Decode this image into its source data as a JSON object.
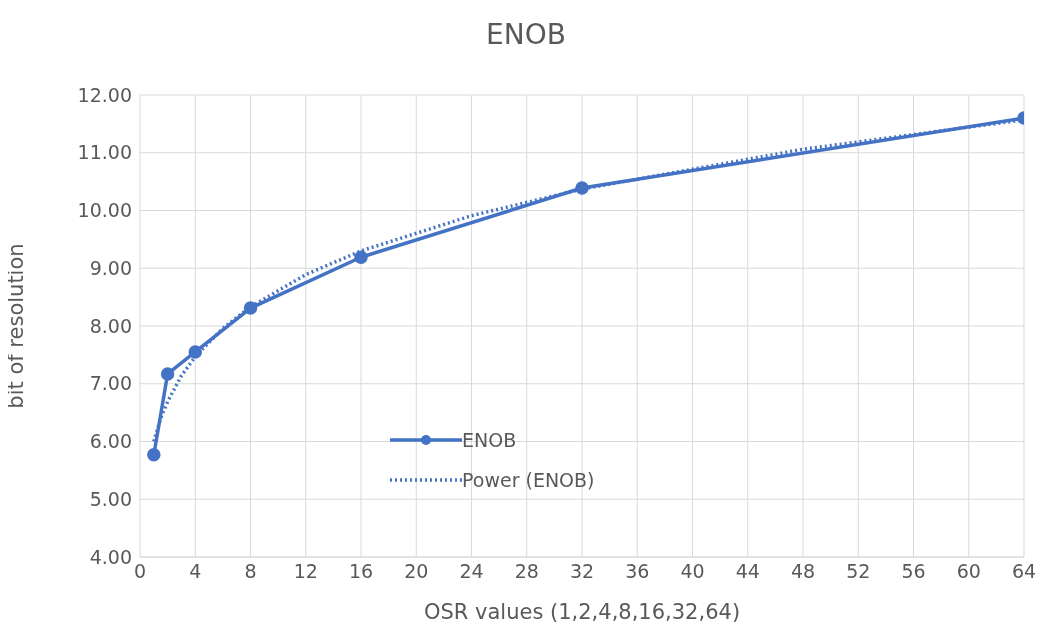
{
  "chart_data": {
    "type": "line",
    "title": "ENOB",
    "xlabel": "OSR values (1,2,4,8,16,32,64)",
    "ylabel": "bit of  resolution",
    "xlim": [
      0,
      64
    ],
    "xticks": [
      0,
      4,
      8,
      12,
      16,
      20,
      24,
      28,
      32,
      36,
      40,
      44,
      48,
      52,
      56,
      60,
      64
    ],
    "ylim": [
      4,
      12
    ],
    "yticks": [
      {
        "value": 4,
        "label": "4.00"
      },
      {
        "value": 5,
        "label": "5.00"
      },
      {
        "value": 6,
        "label": "6.00"
      },
      {
        "value": 7,
        "label": "7.00"
      },
      {
        "value": 8,
        "label": "8.00"
      },
      {
        "value": 9,
        "label": "9.00"
      },
      {
        "value": 10,
        "label": "10.00"
      },
      {
        "value": 11,
        "label": "11.00"
      },
      {
        "value": 12,
        "label": "12.00"
      }
    ],
    "grid": true,
    "legend": "left",
    "series": [
      {
        "name": "ENOB",
        "color": "#4472c4",
        "marker": "circle",
        "line_style": "solid",
        "x": [
          1,
          2,
          4,
          8,
          16,
          32,
          64
        ],
        "values": [
          5.77,
          7.17,
          7.55,
          8.31,
          9.19,
          10.39,
          11.6
        ]
      },
      {
        "name": "Power (ENOB)",
        "color": "#4472c4",
        "marker": "none",
        "line_style": "dotted",
        "x": [
          1,
          1.5,
          2,
          3,
          4,
          6,
          8,
          12,
          16,
          24,
          32,
          48,
          64
        ],
        "values": [
          6.0,
          6.4,
          6.69,
          7.14,
          7.47,
          7.96,
          8.33,
          8.89,
          9.3,
          9.91,
          10.37,
          11.06,
          11.57
        ]
      }
    ]
  }
}
